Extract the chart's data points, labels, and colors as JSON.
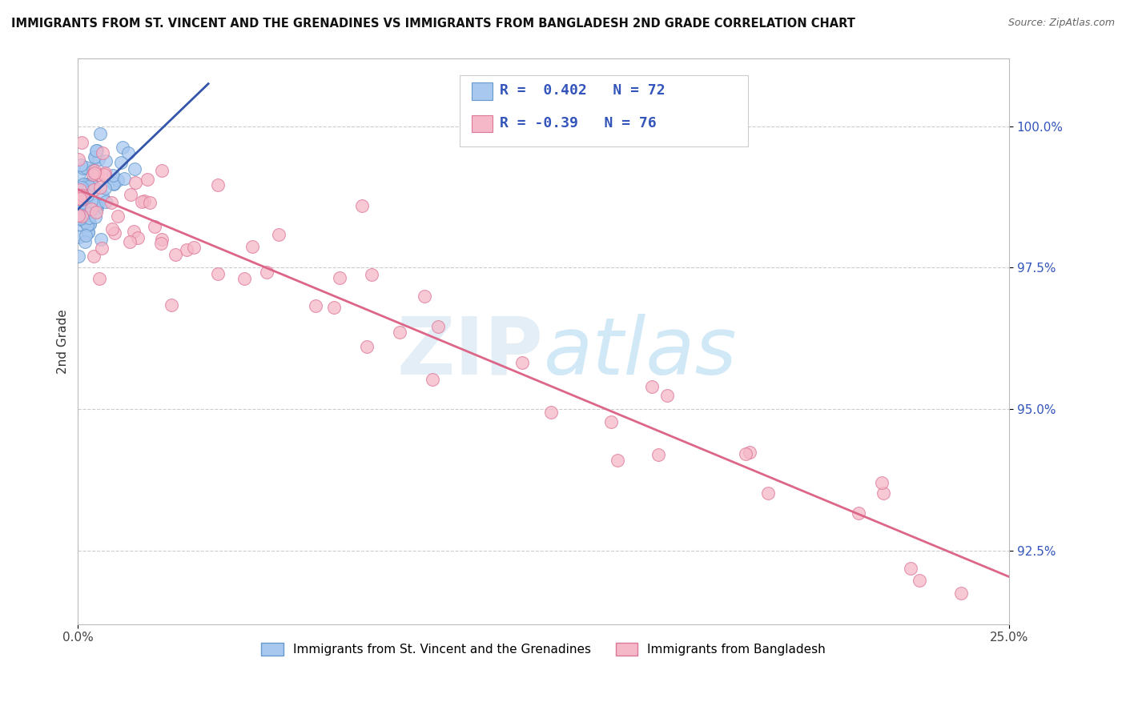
{
  "title": "IMMIGRANTS FROM ST. VINCENT AND THE GRENADINES VS IMMIGRANTS FROM BANGLADESH 2ND GRADE CORRELATION CHART",
  "source": "Source: ZipAtlas.com",
  "ylabel": "2nd Grade",
  "yticks": [
    92.5,
    95.0,
    97.5,
    100.0
  ],
  "ytick_labels": [
    "92.5%",
    "95.0%",
    "97.5%",
    "100.0%"
  ],
  "xlim": [
    0.0,
    25.0
  ],
  "ylim": [
    91.2,
    101.2
  ],
  "series1_color": "#a8c8f0",
  "series1_edge": "#6699cc",
  "series2_color": "#f5b8c8",
  "series2_edge": "#dd7799",
  "trendline1_color": "#3355aa",
  "trendline2_color": "#dd6688",
  "R1": 0.402,
  "N1": 72,
  "R2": -0.39,
  "N2": 76,
  "legend_label1": "Immigrants from St. Vincent and the Grenadines",
  "legend_label2": "Immigrants from Bangladesh",
  "watermark_zip": "ZIP",
  "watermark_atlas": "atlas",
  "background_color": "#ffffff",
  "grid_color": "#cccccc"
}
